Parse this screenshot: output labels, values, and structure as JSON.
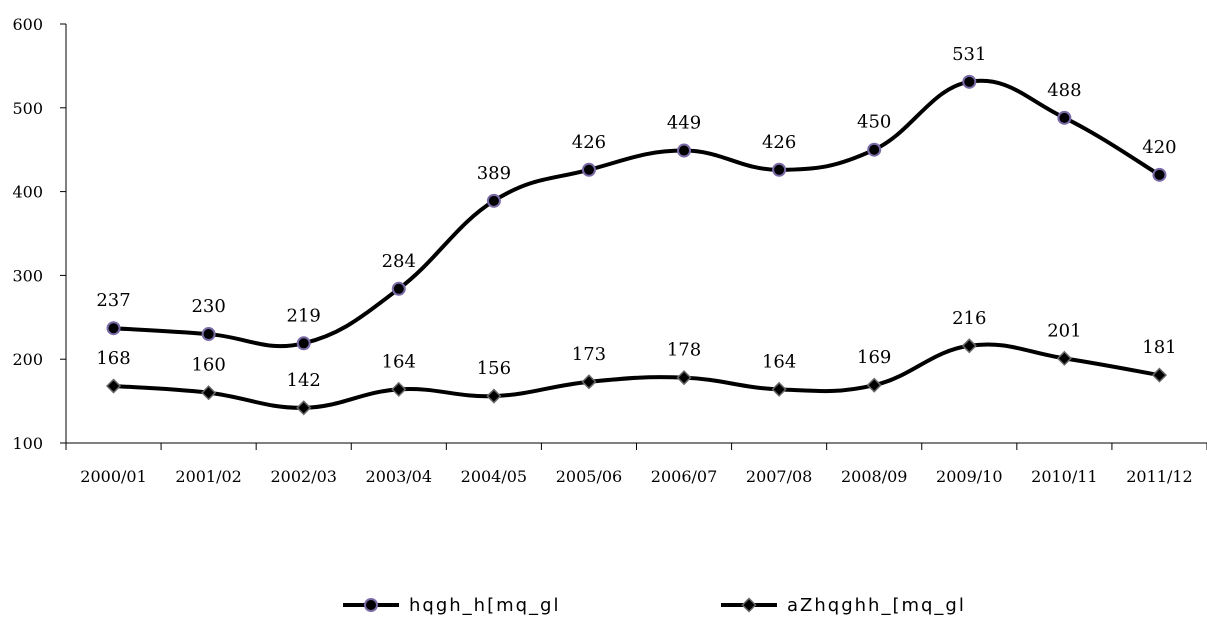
{
  "chart_data": {
    "type": "line",
    "categories": [
      "2000/01",
      "2001/02",
      "2002/03",
      "2003/04",
      "2004/05",
      "2005/06",
      "2006/07",
      "2007/08",
      "2008/09",
      "2009/10",
      "2010/11",
      "2011/12"
    ],
    "series": [
      {
        "name": "hqgh_h[mq_gl",
        "marker": "circle",
        "color": "#000000",
        "marker_fill": "#000000",
        "marker_stroke": "#7b6aa8",
        "values": [
          237,
          230,
          219,
          284,
          389,
          426,
          449,
          426,
          450,
          531,
          488,
          420
        ]
      },
      {
        "name": "aZhqghh_[mq_gl",
        "marker": "diamond",
        "color": "#000000",
        "marker_fill": "#000000",
        "marker_stroke": "#666666",
        "values": [
          168,
          160,
          142,
          164,
          156,
          173,
          178,
          164,
          169,
          216,
          201,
          181
        ]
      }
    ],
    "ylim": [
      100,
      600
    ],
    "yticks": [
      100,
      200,
      300,
      400,
      500,
      600
    ],
    "smooth": true,
    "grid": false,
    "legend_position": "bottom",
    "title": "",
    "xlabel": "",
    "ylabel": ""
  }
}
